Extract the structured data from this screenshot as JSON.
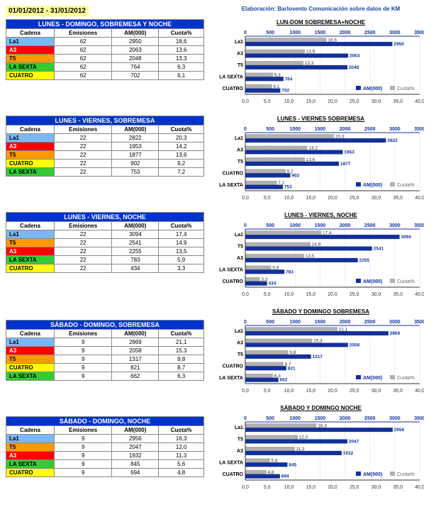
{
  "date_range": "01/01/2012 - 31/01/2012",
  "credit": "Elaboración: Barlovento Comunicación sobre datos de KM",
  "headers": [
    "Cadena",
    "Emisiones",
    "AM(000)",
    "Cuota%"
  ],
  "channel_colors": {
    "La1": "#7ab8f5",
    "A3": "#ff0000",
    "T5": "#ff9900",
    "LA SEXTA": "#33cc33",
    "CUATRO": "#ffff00"
  },
  "title_bg": "#0033cc",
  "legend": {
    "am": "AM(000)",
    "cuota": "Cuota%",
    "am_color": "#1030a0",
    "cuota_color": "#b0b0b0"
  },
  "top_axis_color": "#1030a0",
  "bottom_axis_color": "#333333",
  "sections": [
    {
      "table_title": "LUNES - DOMINGO, SOBREMESA Y NOCHE",
      "chart_title": "LUN-DOM SOBREMESA+NOCHE",
      "top_max": 3500,
      "top_step": 500,
      "bot_max": 40,
      "bot_step": 5,
      "rows": [
        {
          "ch": "La1",
          "em": 62,
          "am": 2950,
          "cu": "18,6",
          "amv": 2950,
          "cuv": 18.6
        },
        {
          "ch": "A3",
          "em": 62,
          "am": 2063,
          "cu": "13,6",
          "amv": 2063,
          "cuv": 13.6
        },
        {
          "ch": "T5",
          "em": 62,
          "am": 2048,
          "cu": "13,3",
          "amv": 2048,
          "cuv": 13.3
        },
        {
          "ch": "LA SEXTA",
          "em": 62,
          "am": 764,
          "cu": "6,3",
          "amv": 764,
          "cuv": 6.3
        },
        {
          "ch": "CUATRO",
          "em": 62,
          "am": 702,
          "cu": "6,1",
          "amv": 702,
          "cuv": 6.1
        }
      ]
    },
    {
      "table_title": "LUNES - VIERNES, SOBREMESA",
      "chart_title": "LUNES - VIERNES SOBREMESA",
      "top_max": 3500,
      "top_step": 500,
      "bot_max": 40,
      "bot_step": 5,
      "rows": [
        {
          "ch": "La1",
          "em": 22,
          "am": 2822,
          "cu": "20,3",
          "amv": 2822,
          "cuv": 20.3
        },
        {
          "ch": "A3",
          "em": 22,
          "am": 1953,
          "cu": "14,2",
          "amv": 1953,
          "cuv": 14.2
        },
        {
          "ch": "T5",
          "em": 22,
          "am": 1877,
          "cu": "13,6",
          "amv": 1877,
          "cuv": 13.6
        },
        {
          "ch": "CUATRO",
          "em": 22,
          "am": 902,
          "cu": "9,2",
          "amv": 902,
          "cuv": 9.2
        },
        {
          "ch": "LA SEXTA",
          "em": 22,
          "am": 753,
          "cu": "7,2",
          "amv": 753,
          "cuv": 7.2
        }
      ]
    },
    {
      "table_title": "LUNES - VIERNES, NOCHE",
      "chart_title": "LUNES - VIERNES, NOCHE",
      "top_max": 3500,
      "top_step": 500,
      "bot_max": 40,
      "bot_step": 5,
      "rows": [
        {
          "ch": "La1",
          "em": 22,
          "am": 3094,
          "cu": "17,4",
          "amv": 3094,
          "cuv": 17.4
        },
        {
          "ch": "T5",
          "em": 22,
          "am": 2541,
          "cu": "14,9",
          "amv": 2541,
          "cuv": 14.9
        },
        {
          "ch": "A3",
          "em": 22,
          "am": 2255,
          "cu": "13,5",
          "amv": 2255,
          "cuv": 13.5
        },
        {
          "ch": "LA SEXTA",
          "em": 22,
          "am": 783,
          "cu": "5,9",
          "amv": 783,
          "cuv": 5.9
        },
        {
          "ch": "CUATRO",
          "em": 22,
          "am": 434,
          "cu": "3,3",
          "amv": 434,
          "cuv": 3.3
        }
      ]
    },
    {
      "table_title": "SÁBADO - DOMINGO, SOBREMESA",
      "chart_title": "SÁBADO Y DOMINGO SOBREMESA",
      "top_max": 3500,
      "top_step": 500,
      "bot_max": 40,
      "bot_step": 5,
      "rows": [
        {
          "ch": "La1",
          "em": 9,
          "am": 2869,
          "cu": "21,1",
          "amv": 2869,
          "cuv": 21.1
        },
        {
          "ch": "A3",
          "em": 9,
          "am": 2058,
          "cu": "15,3",
          "amv": 2058,
          "cuv": 15.3
        },
        {
          "ch": "T5",
          "em": 9,
          "am": 1317,
          "cu": "9,8",
          "amv": 1317,
          "cuv": 9.8
        },
        {
          "ch": "CUATRO",
          "em": 9,
          "am": 821,
          "cu": "8,7",
          "amv": 821,
          "cuv": 8.7
        },
        {
          "ch": "LA SEXTA",
          "em": 9,
          "am": 662,
          "cu": "6,3",
          "amv": 662,
          "cuv": 6.3
        }
      ]
    },
    {
      "table_title": "SÁBADO - DOMINGO, NOCHE",
      "chart_title": "SÁBADO Y DOMINGO NOCHE",
      "top_max": 3500,
      "top_step": 500,
      "bot_max": 40,
      "bot_step": 5,
      "rows": [
        {
          "ch": "La1",
          "em": 9,
          "am": 2956,
          "cu": "16,3",
          "amv": 2956,
          "cuv": 16.3
        },
        {
          "ch": "T5",
          "em": 9,
          "am": 2047,
          "cu": "12,0",
          "amv": 2047,
          "cuv": 12.0
        },
        {
          "ch": "A3",
          "em": 9,
          "am": 1932,
          "cu": "11,3",
          "amv": 1932,
          "cuv": 11.3
        },
        {
          "ch": "LA SEXTA",
          "em": 9,
          "am": 845,
          "cu": "5,6",
          "amv": 845,
          "cuv": 5.6
        },
        {
          "ch": "CUATRO",
          "em": 9,
          "am": 694,
          "cu": "4,8",
          "amv": 694,
          "cuv": 4.8
        }
      ]
    }
  ]
}
